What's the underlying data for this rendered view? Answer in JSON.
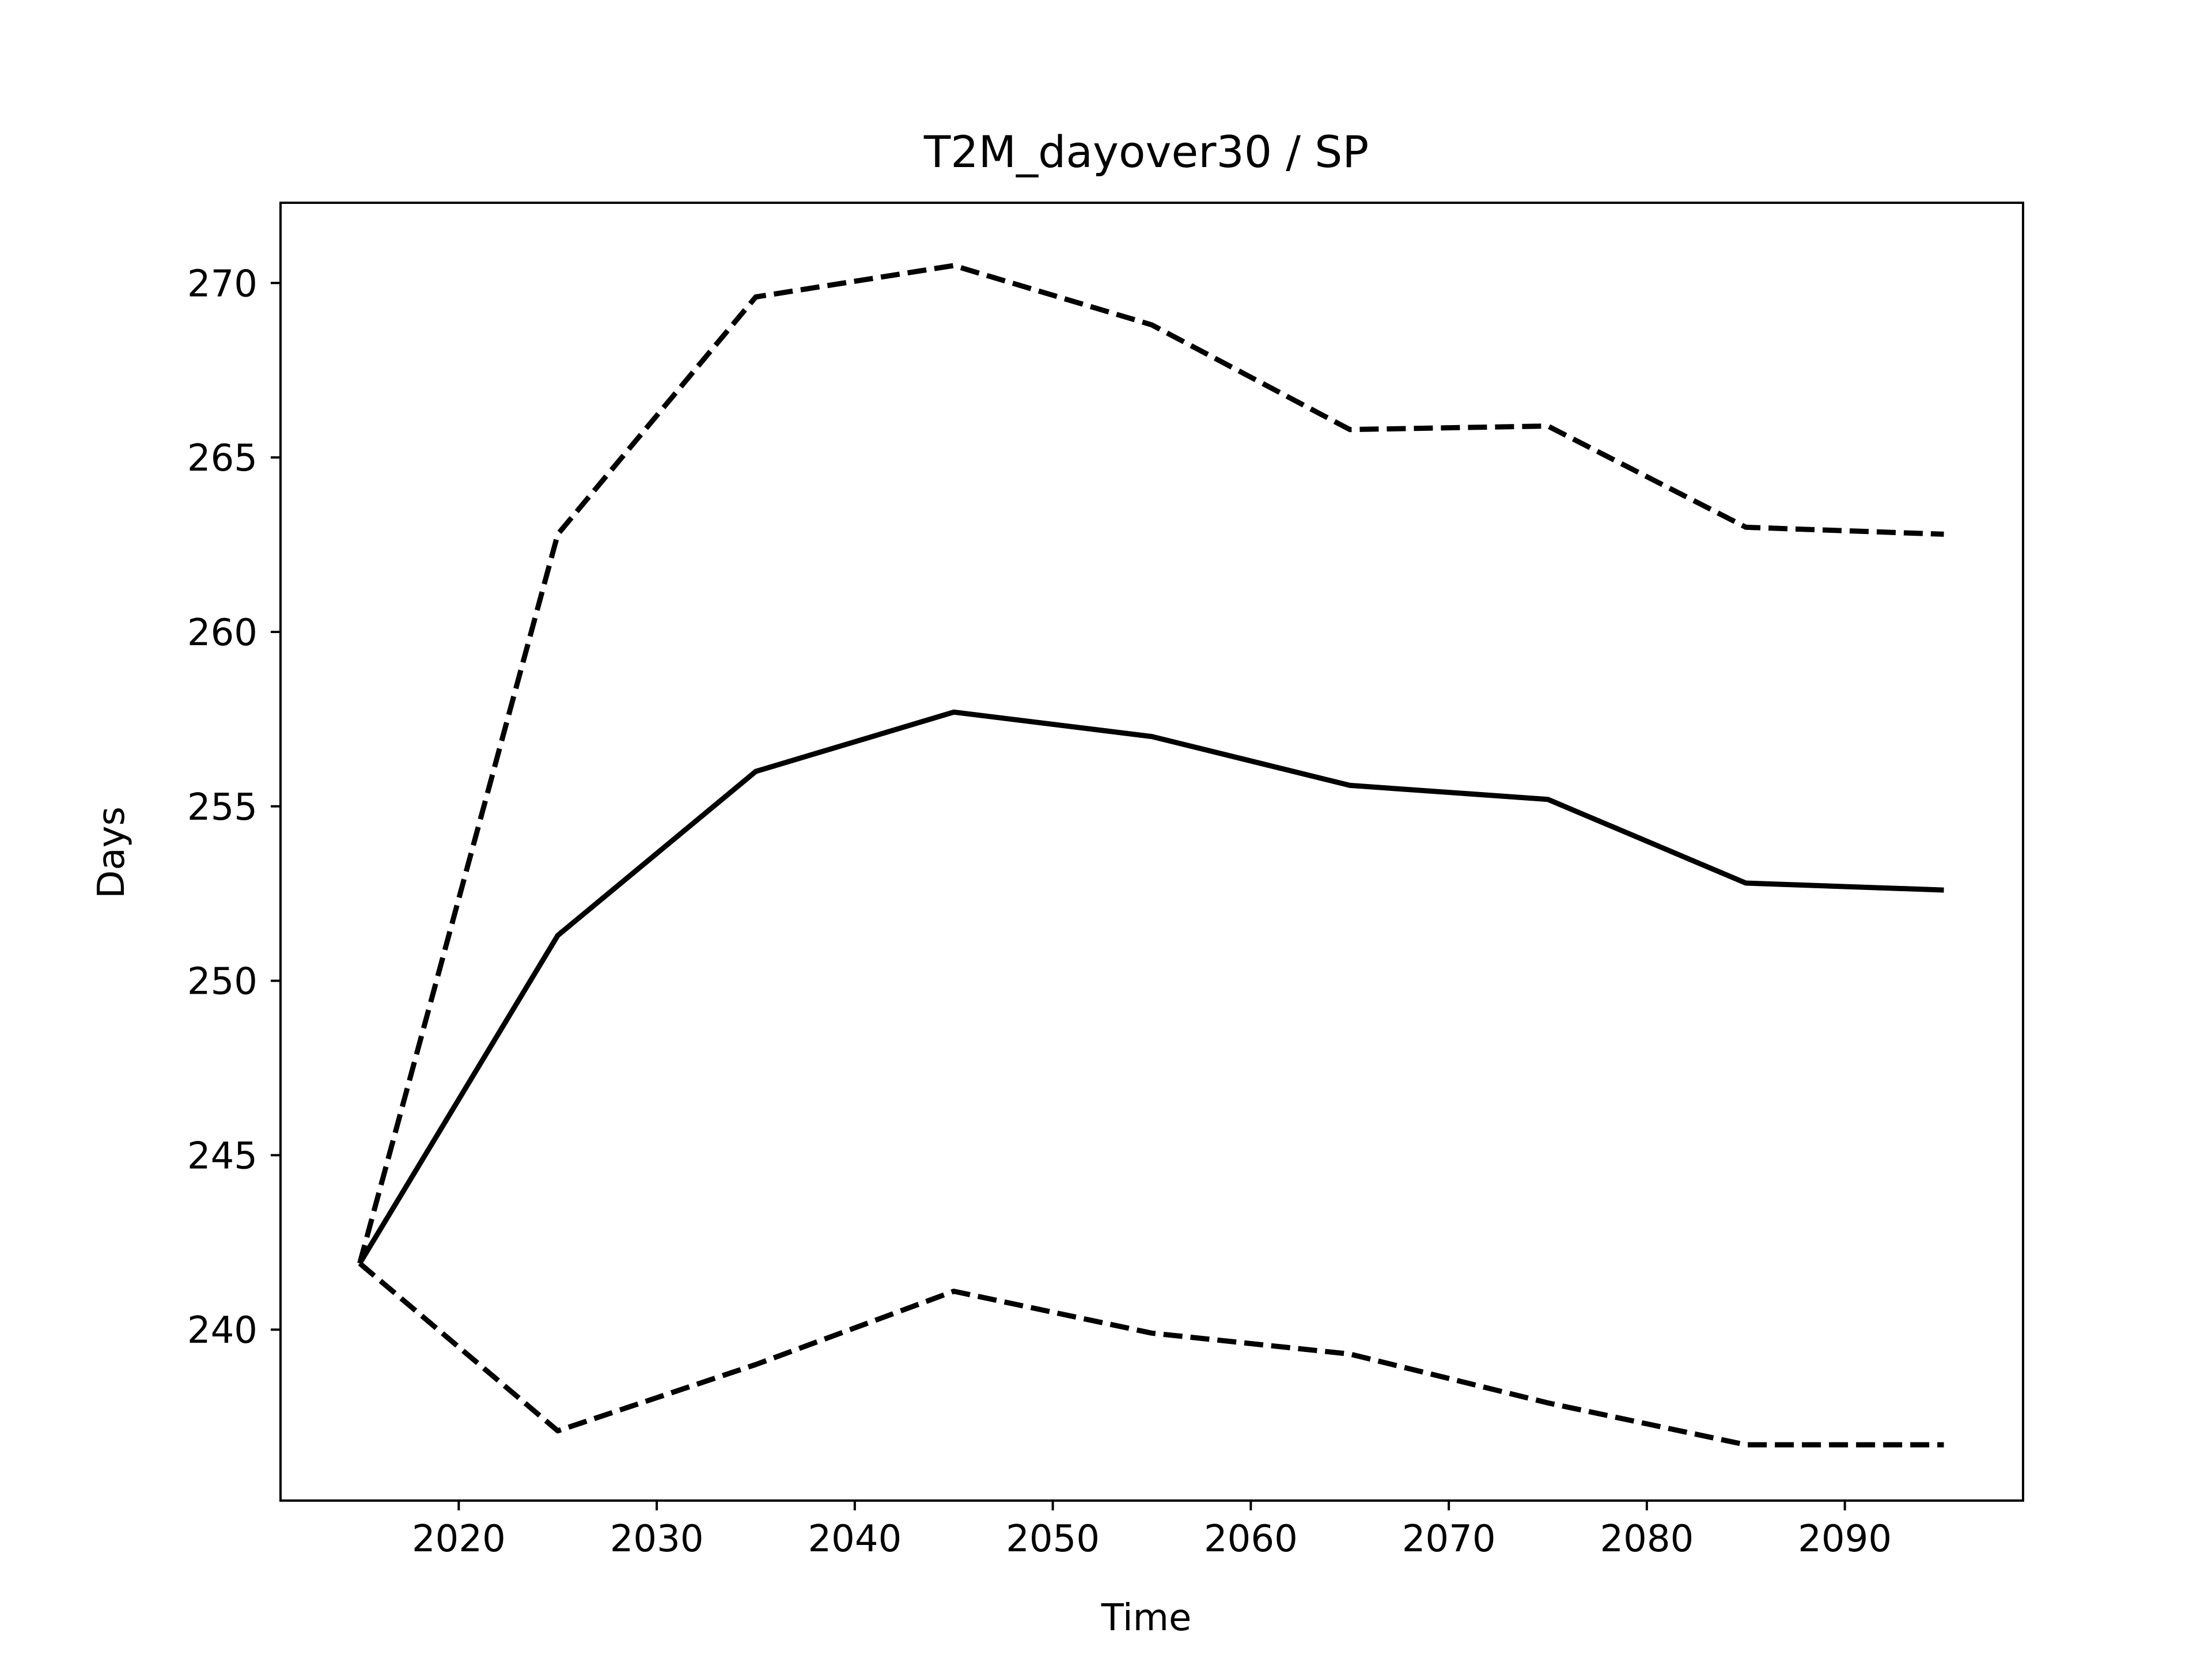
{
  "chart_data": {
    "type": "line",
    "title": "T2M_dayover30 / SP",
    "xlabel": "Time",
    "ylabel": "Days",
    "xlim": [
      2011,
      2099
    ],
    "ylim": [
      235.1,
      272.3
    ],
    "x_ticks": [
      2020,
      2030,
      2040,
      2050,
      2060,
      2070,
      2080,
      2090
    ],
    "y_ticks": [
      240,
      245,
      250,
      255,
      260,
      265,
      270
    ],
    "x_tick_labels": [
      "2020",
      "2030",
      "2040",
      "2050",
      "2060",
      "2070",
      "2080",
      "2090"
    ],
    "y_tick_labels": [
      "240",
      "245",
      "250",
      "255",
      "260",
      "265",
      "270"
    ],
    "grid": false,
    "legend": "none",
    "x": [
      2015,
      2025,
      2035,
      2045,
      2055,
      2065,
      2075,
      2085,
      2095
    ],
    "series": [
      {
        "style": "dashed",
        "color": "#000000",
        "values": [
          241.9,
          262.8,
          269.6,
          270.5,
          268.8,
          265.8,
          265.9,
          263.0,
          262.8
        ]
      },
      {
        "style": "solid",
        "color": "#000000",
        "values": [
          241.9,
          251.3,
          256.0,
          257.7,
          257.0,
          255.6,
          255.2,
          252.8,
          252.6
        ]
      },
      {
        "style": "dashed",
        "color": "#000000",
        "values": [
          241.9,
          237.1,
          239.0,
          241.1,
          239.9,
          239.3,
          237.9,
          236.7,
          236.7
        ]
      }
    ]
  }
}
